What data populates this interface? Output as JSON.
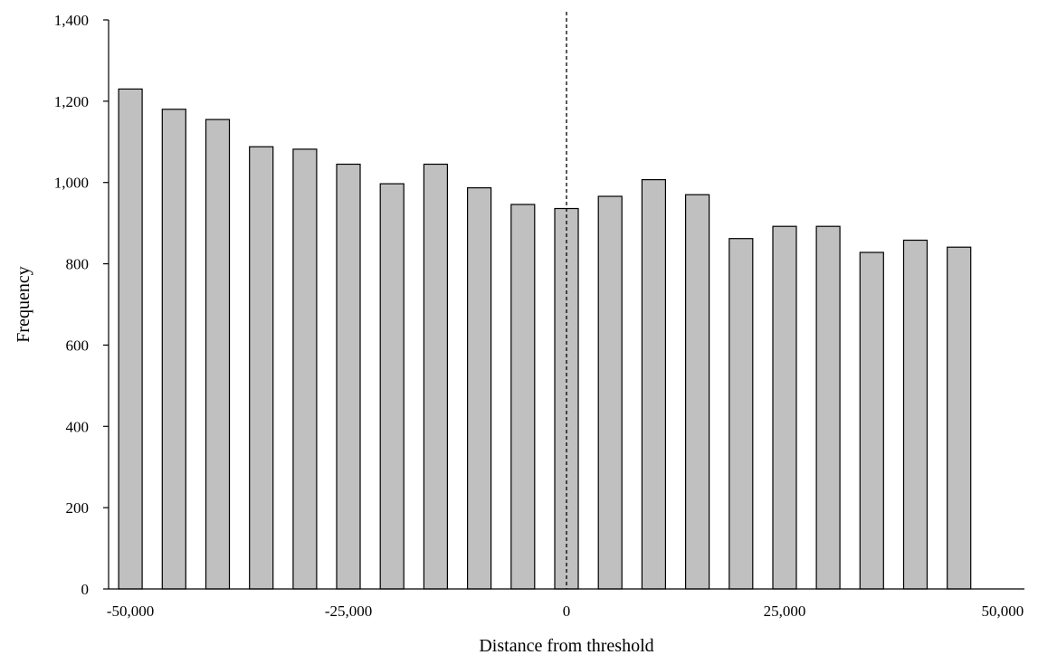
{
  "chart_data": {
    "type": "bar",
    "title": "",
    "xlabel": "Distance from threshold",
    "ylabel": "Frequency",
    "ylim": [
      0,
      1400
    ],
    "xlim": [
      -52500,
      52500
    ],
    "y_ticks": [
      "0",
      "200",
      "400",
      "600",
      "800",
      "1,000",
      "1,200",
      "1,400"
    ],
    "y_tick_values": [
      0,
      200,
      400,
      600,
      800,
      1000,
      1200,
      1400
    ],
    "x_ticks": [
      "-50,000",
      "-25,000",
      "0",
      "25,000",
      "50,000"
    ],
    "x_tick_values": [
      -50000,
      -25000,
      0,
      25000,
      50000
    ],
    "threshold_x": 0,
    "threshold_style": "dashed",
    "bar_color": "#c0c0c0",
    "grid": false,
    "legend": "none",
    "categories": [
      -50000,
      -45000,
      -40000,
      -35000,
      -30000,
      -25000,
      -20000,
      -15000,
      -10000,
      -5000,
      0,
      5000,
      10000,
      15000,
      20000,
      25000,
      30000,
      35000,
      40000,
      45000
    ],
    "values": [
      1230,
      1180,
      1155,
      1088,
      1082,
      1045,
      997,
      1045,
      987,
      946,
      936,
      966,
      1007,
      970,
      862,
      892,
      892,
      828,
      858,
      841
    ]
  }
}
